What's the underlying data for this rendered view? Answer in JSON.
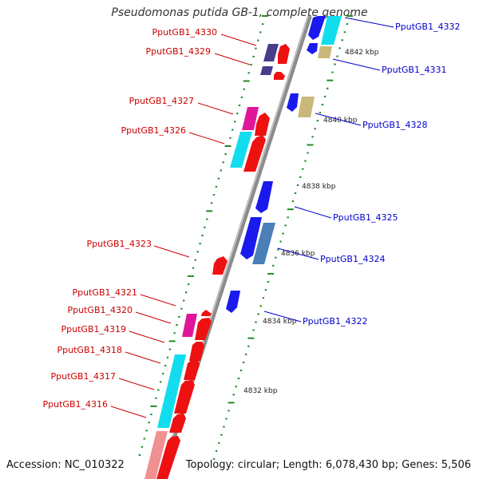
{
  "title": "Pseudomonas putida GB-1, complete genome",
  "footer": {
    "accession_label": "Accession:",
    "accession": "NC_010322",
    "topology_label": "Topology:",
    "topology": "circular",
    "length_label": "Length:",
    "length": "6,078,430 bp",
    "genes_label": "Genes:",
    "genes": "5,506"
  },
  "colors": {
    "backbone": "#8c8c8c",
    "minus_strand_label": "#cc0000",
    "plus_strand_label": "#0000cc",
    "tick": "#228b22",
    "red": "#ee1111",
    "blue": "#1a1aee",
    "cyan": "#11ddee",
    "magenta": "#e0169a",
    "purple": "#4a3c8c",
    "khaki": "#c8b97a",
    "steelblue": "#4a7fb8",
    "pink": "#f09090"
  },
  "scale_labels": [
    "4832 kbp",
    "4834 kbp",
    "4836 kbp",
    "4838 kbp",
    "4840 kbp",
    "4842 kbp"
  ],
  "minus_genes": [
    {
      "label": "PputGB1_4330"
    },
    {
      "label": "PputGB1_4329"
    },
    {
      "label": "PputGB1_4327"
    },
    {
      "label": "PputGB1_4326"
    },
    {
      "label": "PputGB1_4323"
    },
    {
      "label": "PputGB1_4321"
    },
    {
      "label": "PputGB1_4320"
    },
    {
      "label": "PputGB1_4319"
    },
    {
      "label": "PputGB1_4318"
    },
    {
      "label": "PputGB1_4317"
    },
    {
      "label": "PputGB1_4316"
    }
  ],
  "plus_genes": [
    {
      "label": "PputGB1_4332"
    },
    {
      "label": "PputGB1_4331"
    },
    {
      "label": "PputGB1_4328"
    },
    {
      "label": "PputGB1_4325"
    },
    {
      "label": "PputGB1_4324"
    },
    {
      "label": "PputGB1_4322"
    }
  ]
}
